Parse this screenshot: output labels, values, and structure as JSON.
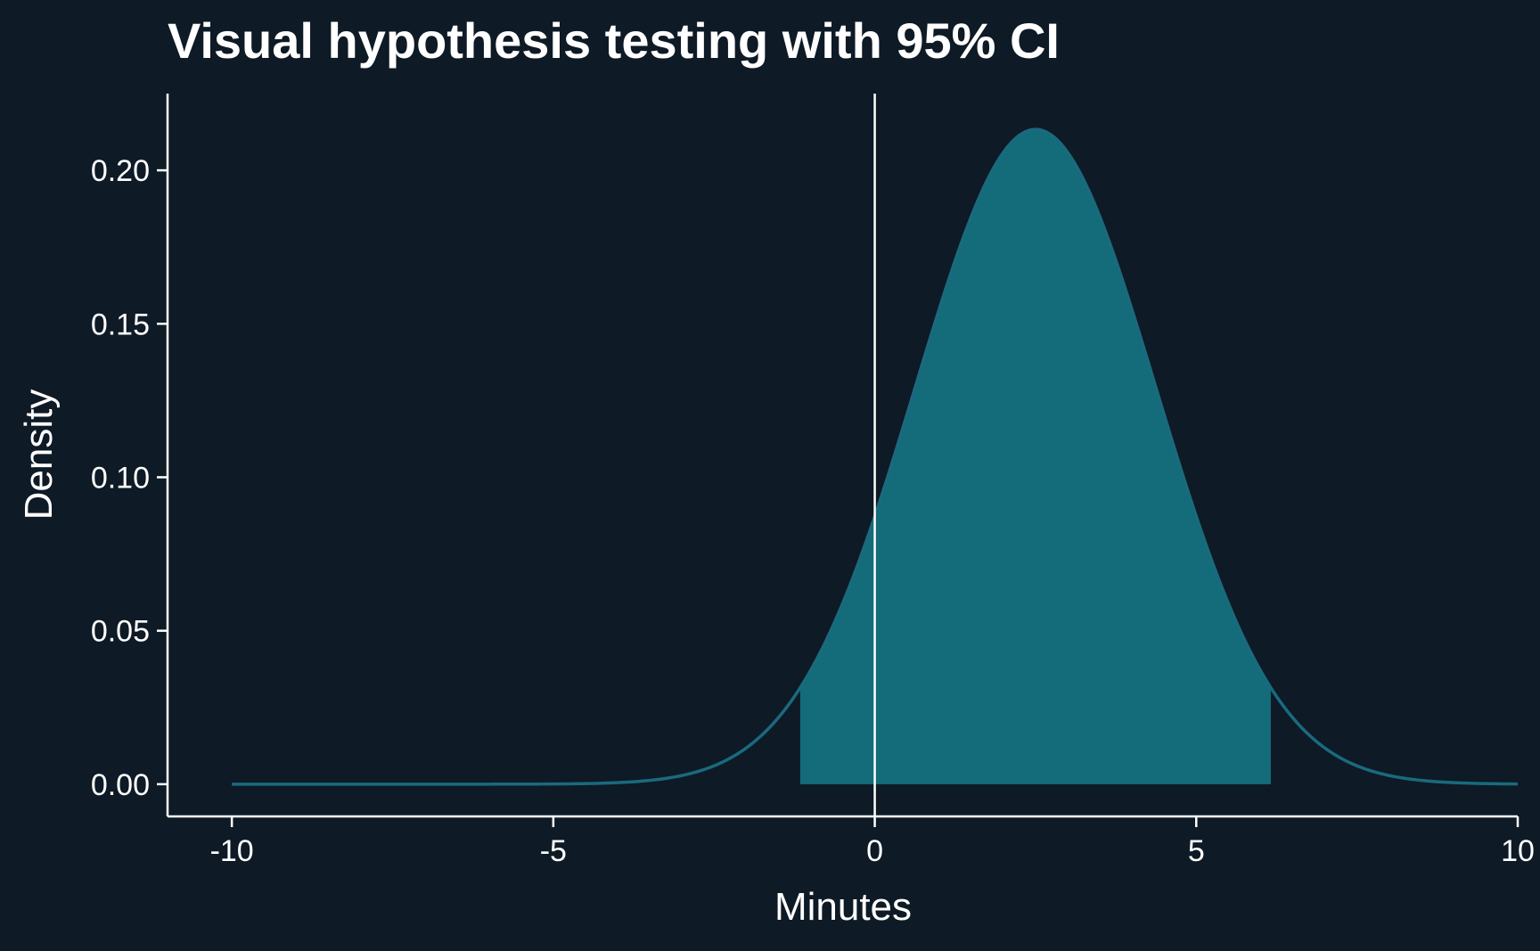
{
  "chart_data": {
    "type": "area",
    "title": "Visual hypothesis testing with 95% CI",
    "xlabel": "Minutes",
    "ylabel": "Density",
    "xlim": [
      -11.0,
      10.0
    ],
    "ylim": [
      -0.0105,
      0.225
    ],
    "x_ticks": [
      -10,
      -5,
      0,
      5,
      10
    ],
    "x_tick_labels": [
      "-10",
      "-5",
      "0",
      "5",
      "10"
    ],
    "y_ticks": [
      0.0,
      0.05,
      0.1,
      0.15,
      0.2
    ],
    "y_tick_labels": [
      "0.00",
      "0.05",
      "0.10",
      "0.15",
      "0.20"
    ],
    "series": [
      {
        "distribution": "normal",
        "mean": 2.5,
        "sd": 1.87,
        "x_range": [
          -10,
          10
        ]
      }
    ],
    "ci_band": {
      "lower": -1.16,
      "upper": 6.16,
      "level": "95%"
    },
    "reference_line": {
      "x": 0
    },
    "grid": false,
    "colors": {
      "background": "#0e1a25",
      "curve": "#1a6a7e",
      "ci_fill": "#146b7a",
      "axis": "#ffffff",
      "reference_line": "#ffffff",
      "text": "#ffffff"
    }
  }
}
